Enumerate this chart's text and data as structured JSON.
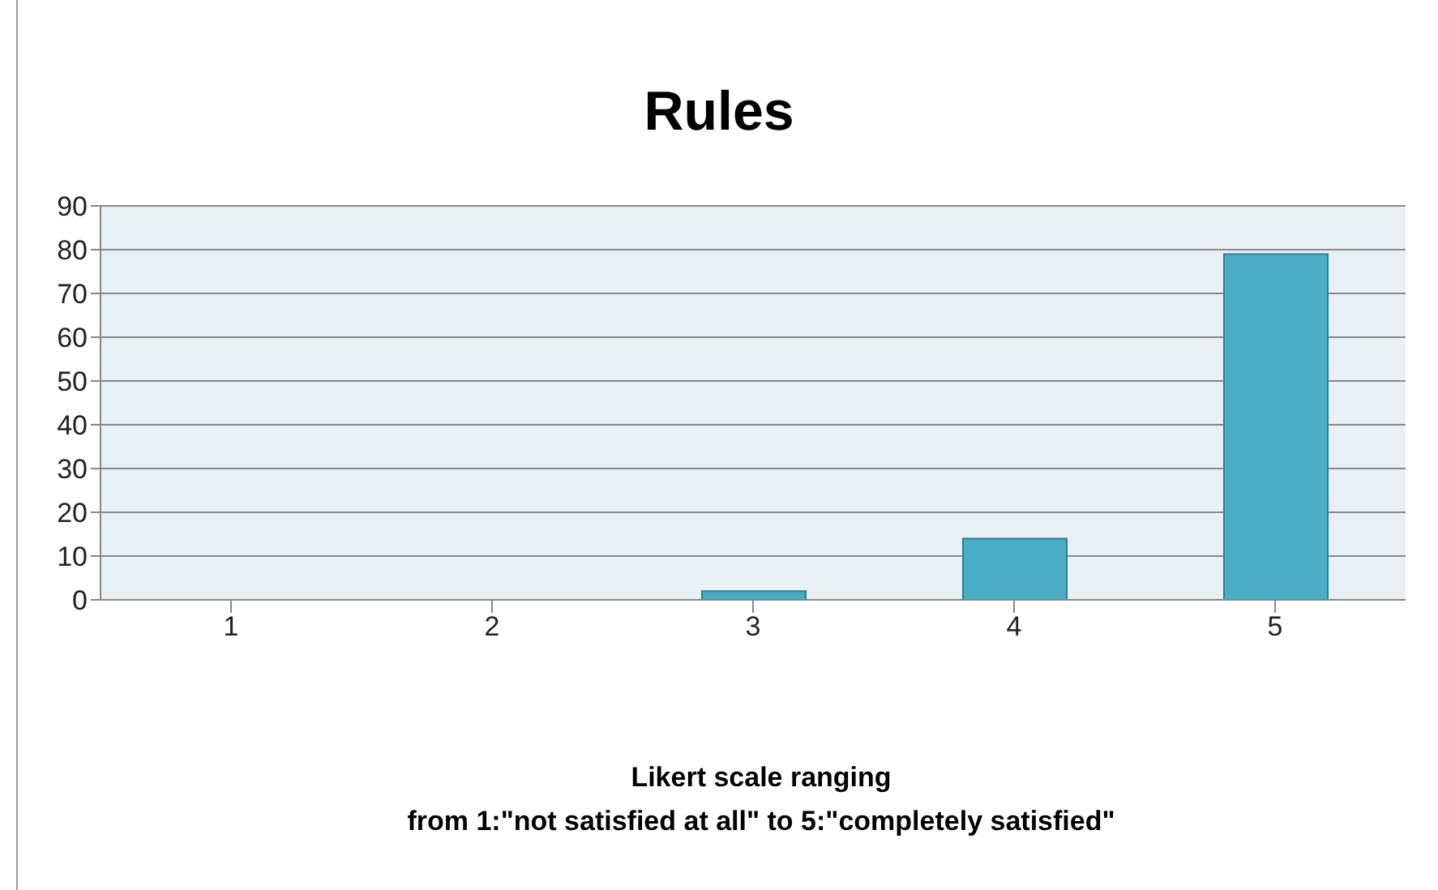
{
  "chart_data": {
    "type": "bar",
    "title": "Rules",
    "xlabel": "Likert scale ranging\nfrom 1:\"not satisfied at all\" to 5:\"completely satisfied\"",
    "categories": [
      "1",
      "2",
      "3",
      "4",
      "5"
    ],
    "values": [
      0,
      0,
      2,
      14,
      79
    ],
    "color": "#4bacc6",
    "ylim": [
      0,
      90
    ],
    "yticks": [
      0,
      10,
      20,
      30,
      40,
      50,
      60,
      70,
      80,
      90
    ],
    "grid": "y"
  }
}
